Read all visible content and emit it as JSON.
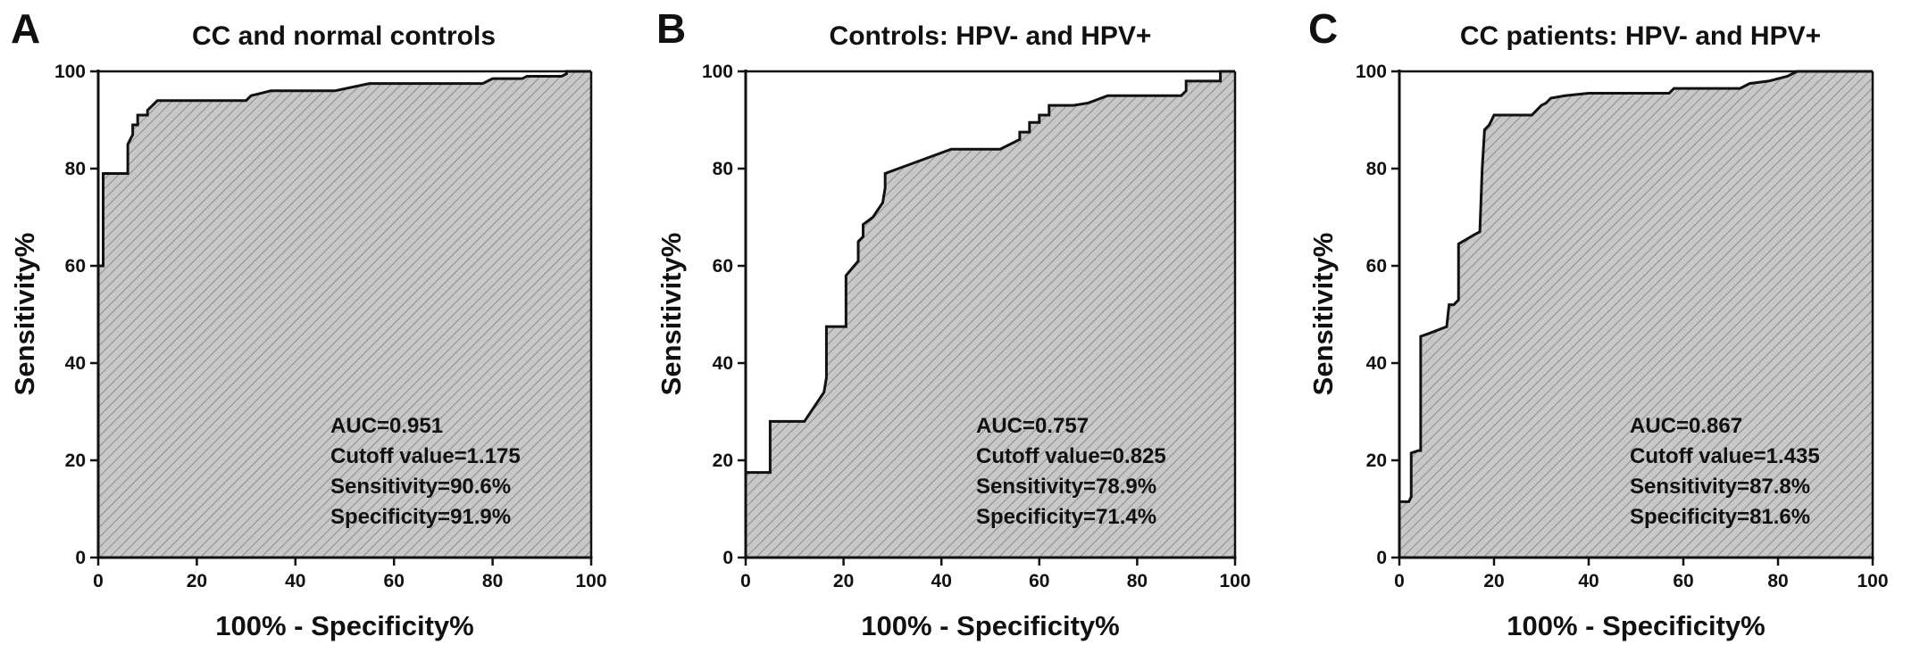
{
  "colors": {
    "line": "#111111",
    "fill": "#c8c8c8",
    "hatch": "#8c8c8c",
    "background": "#ffffff"
  },
  "chart_data": [
    {
      "type": "area",
      "panel": "A",
      "title": "CC and normal controls",
      "xlabel": "100% - Specificity%",
      "ylabel": "Sensitivity%",
      "xlim": [
        0,
        100
      ],
      "ylim": [
        0,
        100
      ],
      "xticks": [
        "0",
        "20",
        "40",
        "60",
        "80",
        "100"
      ],
      "yticks": [
        "0",
        "20",
        "40",
        "60",
        "80",
        "100"
      ],
      "stats": [
        "AUC=0.951",
        "Cutoff value=1.175",
        "Sensitivity=90.6%",
        "Specificity=91.9%"
      ],
      "x": [
        0,
        0,
        1,
        1,
        6,
        6,
        7,
        7,
        8,
        8,
        9,
        10,
        10,
        11,
        12,
        30,
        31,
        33,
        35,
        48,
        55,
        78,
        80,
        86,
        87,
        94,
        95,
        95,
        100
      ],
      "y": [
        0,
        60,
        60,
        79,
        79,
        85,
        87,
        89,
        89,
        91,
        91,
        91,
        92,
        93,
        94,
        94,
        95,
        95.5,
        96,
        96,
        97.5,
        97.5,
        98.5,
        98.5,
        99,
        99,
        99.5,
        100,
        100
      ]
    },
    {
      "type": "area",
      "panel": "B",
      "title": "Controls: HPV- and HPV+",
      "xlabel": "100% - Specificity%",
      "ylabel": "Sensitivity%",
      "xlim": [
        0,
        100
      ],
      "ylim": [
        0,
        100
      ],
      "xticks": [
        "0",
        "20",
        "40",
        "60",
        "80",
        "100"
      ],
      "yticks": [
        "0",
        "20",
        "40",
        "60",
        "80",
        "100"
      ],
      "stats": [
        "AUC=0.757",
        "Cutoff value=0.825",
        "Sensitivity=78.9%",
        "Specificity=71.4%"
      ],
      "x": [
        0,
        0,
        5,
        5,
        12,
        14,
        16,
        16.5,
        16.5,
        20.5,
        20.5,
        23,
        23,
        24,
        24,
        26,
        28,
        28.5,
        28.5,
        42,
        52,
        56,
        56,
        58,
        58,
        60,
        60,
        62,
        62,
        67,
        70,
        74,
        89,
        90,
        90,
        97,
        97,
        100
      ],
      "y": [
        0,
        17.5,
        17.5,
        28,
        28,
        31,
        34,
        37,
        47.5,
        47.5,
        58,
        61,
        65,
        66,
        68.5,
        70,
        73,
        76,
        79,
        84,
        84,
        86,
        87.5,
        87.5,
        89.5,
        89.5,
        91,
        91,
        93,
        93,
        93.5,
        95,
        95,
        96,
        98,
        98,
        100,
        100
      ]
    },
    {
      "type": "area",
      "panel": "C",
      "title": "CC patients: HPV- and HPV+",
      "xlabel": "100% - Specificity%",
      "ylabel": "Sensitivity%",
      "xlim": [
        0,
        100
      ],
      "ylim": [
        0,
        100
      ],
      "xticks": [
        "0",
        "20",
        "40",
        "60",
        "80",
        "100"
      ],
      "yticks": [
        "0",
        "20",
        "40",
        "60",
        "80",
        "100"
      ],
      "stats": [
        "AUC=0.867",
        "Cutoff value=1.435",
        "Sensitivity=87.8%",
        "Specificity=81.6%"
      ],
      "x": [
        0,
        0,
        2,
        2.5,
        2.5,
        4,
        4.5,
        4.5,
        6,
        10,
        10.5,
        11.5,
        12.5,
        12.5,
        16,
        17,
        17.5,
        18,
        19,
        20,
        21,
        28,
        30,
        31,
        32,
        35,
        40,
        57,
        58,
        72,
        74,
        78,
        82,
        84,
        100
      ],
      "y": [
        0,
        11.5,
        11.5,
        12.5,
        21.5,
        22,
        22,
        45.5,
        46,
        47.5,
        52,
        52,
        53,
        64.5,
        66.5,
        67,
        80,
        88,
        89,
        91,
        91,
        91,
        93,
        93.5,
        94.5,
        95,
        95.5,
        95.5,
        96.5,
        96.5,
        97.5,
        98,
        99,
        100,
        100
      ]
    }
  ]
}
